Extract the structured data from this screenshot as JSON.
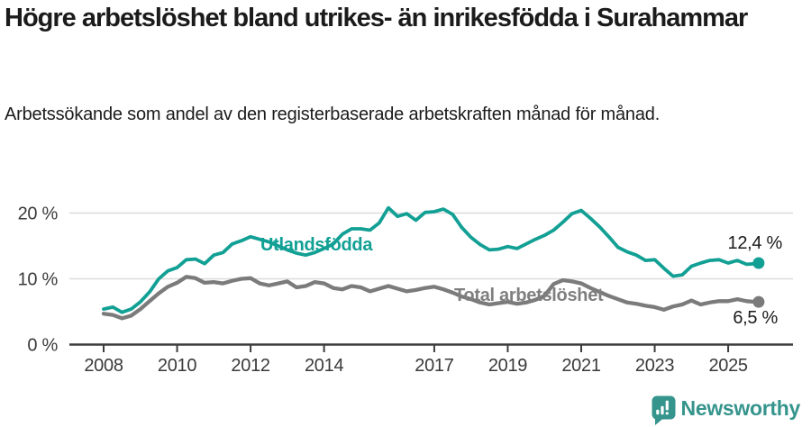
{
  "header": {
    "title": "Högre arbetslöshet bland utrikes- än inrikesfödda i Surahammar",
    "subtitle": "Arbetssökande som andel av den registerbaserade arbetskraften månad för månad."
  },
  "chart_data": {
    "type": "line",
    "title": "Högre arbetslöshet bland utrikes- än inrikesfödda i Surahammar",
    "subtitle": "Arbetssökande som andel av den registerbaserade arbetskraften månad för månad.",
    "xlabel": "",
    "ylabel": "",
    "grid": "horizontal",
    "legend": "inline-labels",
    "ylim": [
      0,
      22
    ],
    "xlim": [
      2007.1,
      2026.8
    ],
    "x": [
      2008.0,
      2008.25,
      2008.5,
      2008.75,
      2009.0,
      2009.25,
      2009.5,
      2009.75,
      2010.0,
      2010.25,
      2010.5,
      2010.75,
      2011.0,
      2011.25,
      2011.5,
      2011.75,
      2012.0,
      2012.25,
      2012.5,
      2012.75,
      2013.0,
      2013.25,
      2013.5,
      2013.75,
      2014.0,
      2014.25,
      2014.5,
      2014.75,
      2015.0,
      2015.25,
      2015.5,
      2015.75,
      2016.0,
      2016.25,
      2016.5,
      2016.75,
      2017.0,
      2017.25,
      2017.5,
      2017.75,
      2018.0,
      2018.25,
      2018.5,
      2018.75,
      2019.0,
      2019.25,
      2019.5,
      2019.75,
      2020.0,
      2020.25,
      2020.5,
      2020.75,
      2021.0,
      2021.25,
      2021.5,
      2021.75,
      2022.0,
      2022.25,
      2022.5,
      2022.75,
      2023.0,
      2023.25,
      2023.5,
      2023.75,
      2024.0,
      2024.25,
      2024.5,
      2024.75,
      2025.0,
      2025.25,
      2025.5,
      2025.75,
      2025.83
    ],
    "series": [
      {
        "name": "Utlandsfödda",
        "label": "Utlandsfödda",
        "end_label": "12,4 %",
        "end_value": 12.4,
        "color": "#12a095",
        "values": [
          5.4,
          5.7,
          4.9,
          5.4,
          6.5,
          8.0,
          10.0,
          11.2,
          11.7,
          12.9,
          13.0,
          12.3,
          13.6,
          14.0,
          15.3,
          15.8,
          16.4,
          16.0,
          15.6,
          15.0,
          14.4,
          13.9,
          13.6,
          14.0,
          14.6,
          15.3,
          16.8,
          17.6,
          17.6,
          17.4,
          18.5,
          20.8,
          19.5,
          19.9,
          18.9,
          20.1,
          20.2,
          20.6,
          19.8,
          17.8,
          16.3,
          15.2,
          14.4,
          14.5,
          14.9,
          14.6,
          15.3,
          16.0,
          16.6,
          17.4,
          18.6,
          19.9,
          20.4,
          19.2,
          17.9,
          16.4,
          14.8,
          14.1,
          13.6,
          12.8,
          12.9,
          11.6,
          10.4,
          10.6,
          11.9,
          12.4,
          12.8,
          12.9,
          12.4,
          12.8,
          12.2,
          12.3,
          12.4
        ]
      },
      {
        "name": "Total arbetslöshet",
        "label": "Total arbetslöshet",
        "end_label": "6,5 %",
        "end_value": 6.5,
        "color": "#7b7b7b",
        "values": [
          4.7,
          4.5,
          4.0,
          4.4,
          5.4,
          6.6,
          7.8,
          8.8,
          9.4,
          10.3,
          10.1,
          9.4,
          9.5,
          9.3,
          9.7,
          10.0,
          10.1,
          9.3,
          9.0,
          9.3,
          9.6,
          8.7,
          8.9,
          9.5,
          9.3,
          8.6,
          8.4,
          8.9,
          8.7,
          8.1,
          8.5,
          8.9,
          8.5,
          8.1,
          8.3,
          8.6,
          8.8,
          8.4,
          7.9,
          7.3,
          6.9,
          6.4,
          6.1,
          6.3,
          6.5,
          6.2,
          6.4,
          6.8,
          7.4,
          9.2,
          9.8,
          9.6,
          9.3,
          8.6,
          8.0,
          7.4,
          6.9,
          6.4,
          6.2,
          5.9,
          5.7,
          5.3,
          5.8,
          6.1,
          6.7,
          6.1,
          6.4,
          6.6,
          6.6,
          6.9,
          6.6,
          6.5,
          6.5
        ]
      }
    ],
    "x_ticks": [
      {
        "year": 2008,
        "label": "2008"
      },
      {
        "year": 2010,
        "label": "2010"
      },
      {
        "year": 2012,
        "label": "2012"
      },
      {
        "year": 2014,
        "label": "2014"
      },
      {
        "year": 2017,
        "label": "2017"
      },
      {
        "year": 2019,
        "label": "2019"
      },
      {
        "year": 2021,
        "label": "2021"
      },
      {
        "year": 2023,
        "label": "2023"
      },
      {
        "year": 2025,
        "label": "2025"
      }
    ],
    "y_ticks": [
      {
        "value": 0,
        "label": "0 %"
      },
      {
        "value": 10,
        "label": "10 %"
      },
      {
        "value": 20,
        "label": "20 %"
      }
    ]
  },
  "footer": {
    "brand": "Newsworthy",
    "logo_icon": "bar-chart-speech-bubble",
    "brand_color": "#35948c"
  }
}
